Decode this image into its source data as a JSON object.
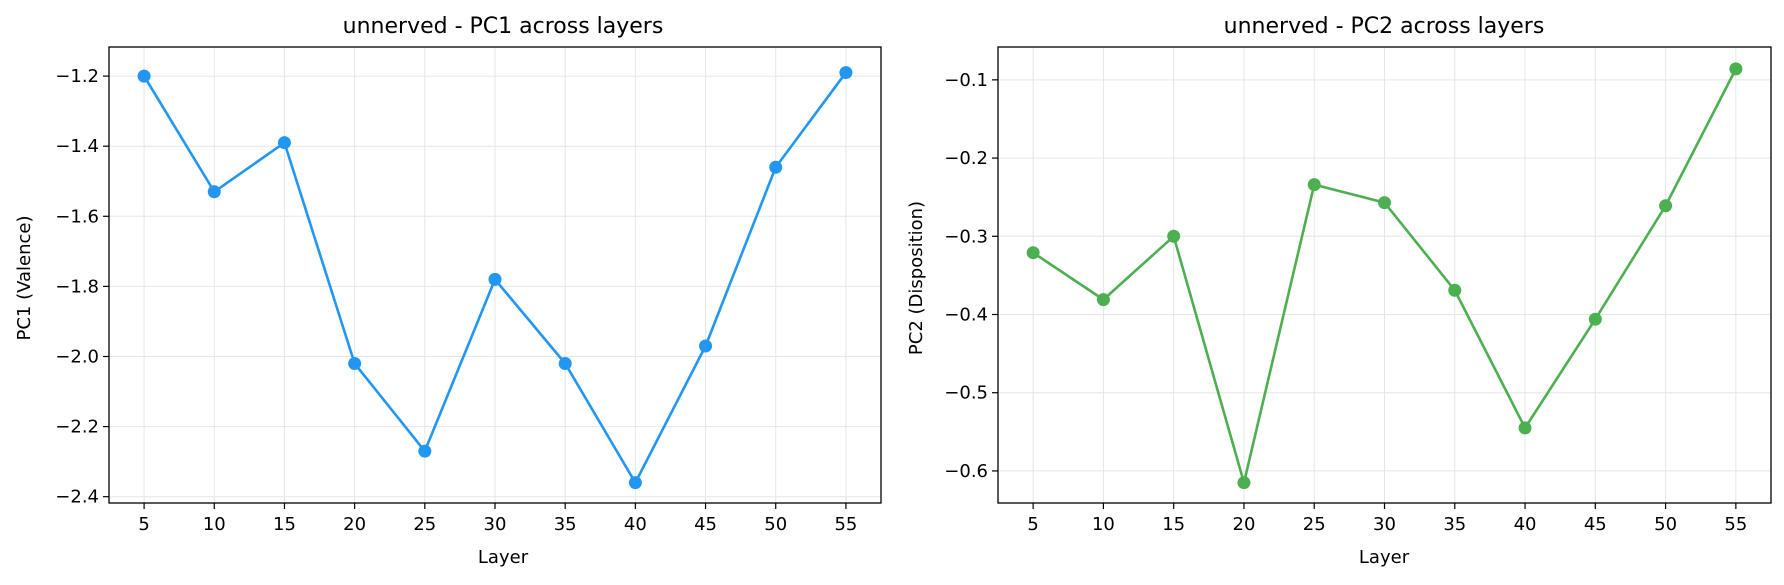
{
  "chart_data": [
    {
      "type": "line",
      "title": "unnerved - PC1 across layers",
      "xlabel": "Layer",
      "ylabel": "PC1 (Valence)",
      "x": [
        5,
        10,
        15,
        20,
        25,
        30,
        35,
        40,
        45,
        50,
        55
      ],
      "series": [
        {
          "values": [
            -1.2,
            -1.53,
            -1.39,
            -2.02,
            -2.27,
            -1.78,
            -2.02,
            -2.36,
            -1.97,
            -1.46,
            -1.19
          ],
          "color": "#2196F3"
        }
      ],
      "xlim": [
        2.5,
        57.5
      ],
      "ylim": [
        -2.418,
        -1.117
      ],
      "xticks": [
        5,
        10,
        15,
        20,
        25,
        30,
        35,
        40,
        45,
        50,
        55
      ],
      "yticks": [
        -1.2,
        -1.4,
        -1.6,
        -1.8,
        -2.0,
        -2.2,
        -2.4
      ],
      "ytick_labels": [
        "−1.2",
        "−1.4",
        "−1.6",
        "−1.8",
        "−2.0",
        "−2.2",
        "−2.4"
      ],
      "grid": true,
      "marker": "circle"
    },
    {
      "type": "line",
      "title": "unnerved - PC2 across layers",
      "xlabel": "Layer",
      "ylabel": "PC2 (Disposition)",
      "x": [
        5,
        10,
        15,
        20,
        25,
        30,
        35,
        40,
        45,
        50,
        55
      ],
      "series": [
        {
          "values": [
            -0.321,
            -0.381,
            -0.3,
            -0.615,
            -0.234,
            -0.257,
            -0.369,
            -0.545,
            -0.406,
            -0.261,
            -0.086
          ],
          "color": "#4CAF50"
        }
      ],
      "xlim": [
        2.5,
        57.5
      ],
      "ylim": [
        -0.641,
        -0.058
      ],
      "xticks": [
        5,
        10,
        15,
        20,
        25,
        30,
        35,
        40,
        45,
        50,
        55
      ],
      "yticks": [
        -0.1,
        -0.2,
        -0.3,
        -0.4,
        -0.5,
        -0.6
      ],
      "ytick_labels": [
        "−0.1",
        "−0.2",
        "−0.3",
        "−0.4",
        "−0.5",
        "−0.6"
      ],
      "grid": true,
      "marker": "circle"
    }
  ]
}
